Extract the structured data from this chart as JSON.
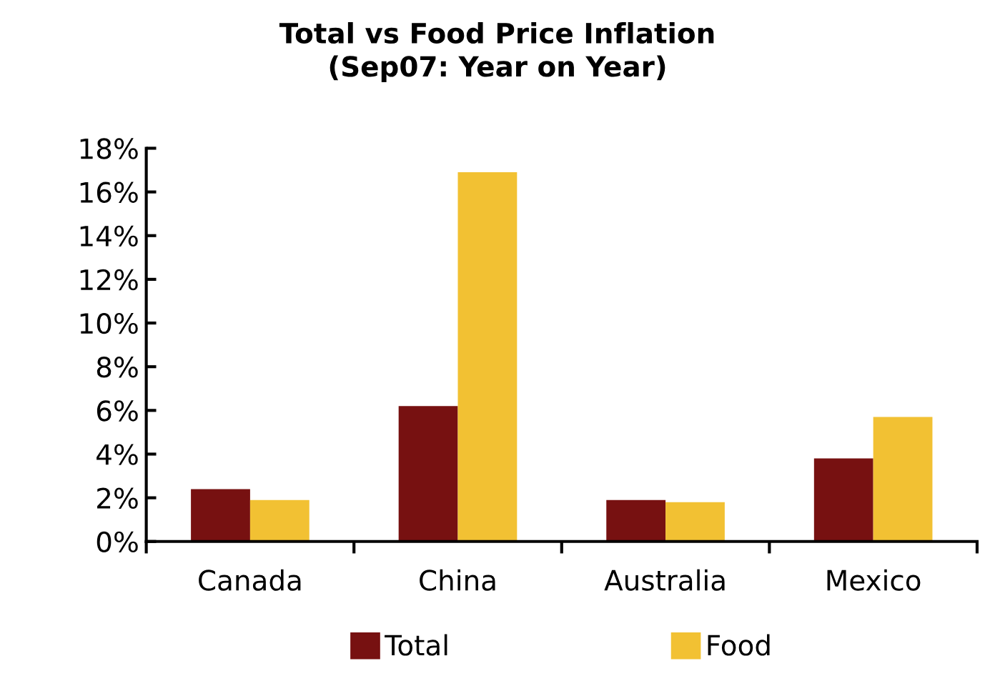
{
  "chart_data": {
    "type": "bar",
    "title": "Total vs Food Price Inflation\n(Sep07: Year on Year)",
    "categories": [
      "Canada",
      "China",
      "Australia",
      "Mexico"
    ],
    "series": [
      {
        "name": "Total",
        "color": "#771111",
        "values": [
          2.4,
          6.2,
          1.9,
          3.8
        ]
      },
      {
        "name": "Food",
        "color": "#f2c133",
        "values": [
          1.9,
          16.9,
          1.8,
          5.7
        ]
      }
    ],
    "ylim": [
      0,
      18
    ],
    "yticks": [
      {
        "value": 0,
        "label": "0%"
      },
      {
        "value": 2,
        "label": "2%"
      },
      {
        "value": 4,
        "label": "4%"
      },
      {
        "value": 6,
        "label": "6%"
      },
      {
        "value": 8,
        "label": "8%"
      },
      {
        "value": 10,
        "label": "10%"
      },
      {
        "value": 12,
        "label": "12%"
      },
      {
        "value": 14,
        "label": "14%"
      },
      {
        "value": 16,
        "label": "16%"
      },
      {
        "value": 18,
        "label": "18%"
      }
    ],
    "grid": false,
    "legend": "bottom"
  }
}
